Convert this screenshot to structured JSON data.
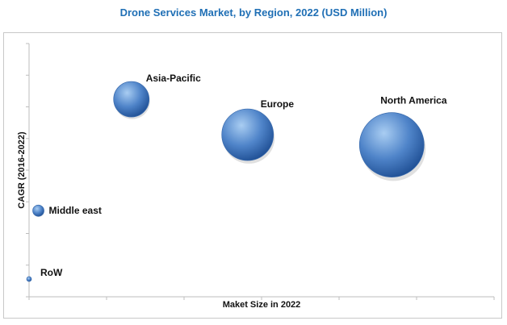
{
  "chart_data": {
    "type": "bubble",
    "title": "Drone Services Market, by Region, 2022 (USD Million)",
    "xlabel": "Maket Size in 2022",
    "ylabel": "CAGR (2016-2022)",
    "xlim": [
      0,
      100
    ],
    "ylim": [
      0,
      100
    ],
    "series": [
      {
        "name": "Asia-Pacific",
        "x": 22,
        "y": 78,
        "size": 22
      },
      {
        "name": "Europe",
        "x": 47,
        "y": 64,
        "size": 32
      },
      {
        "name": "North America",
        "x": 78,
        "y": 60,
        "size": 40
      },
      {
        "name": "Middle east",
        "x": 2,
        "y": 34,
        "size": 7
      },
      {
        "name": "RoW",
        "x": 0,
        "y": 7,
        "size": 3
      }
    ],
    "grid": false,
    "colors": {
      "bubble_light": "#a9cdf2",
      "bubble_mid": "#4f84c9",
      "bubble_dark": "#1f4f94",
      "title": "#1f6fb5"
    }
  }
}
